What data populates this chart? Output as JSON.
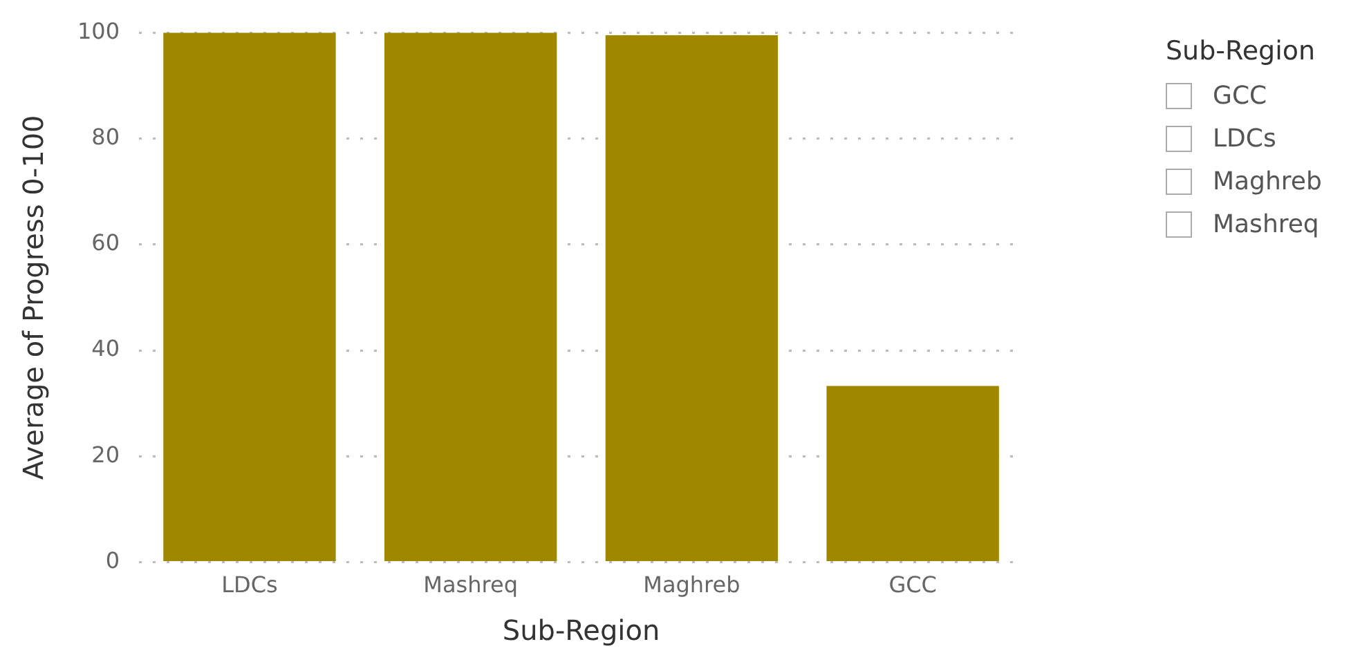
{
  "chart_data": {
    "type": "bar",
    "xlabel": "Sub-Region",
    "ylabel": "Average of Progress 0-100",
    "categories": [
      "LDCs",
      "Mashreq",
      "Maghreb",
      "GCC"
    ],
    "values": [
      100,
      100,
      99.5,
      33.3
    ],
    "color": "#a08700",
    "ylim": [
      0,
      100
    ],
    "yticks": [
      0,
      20,
      40,
      60,
      80,
      100
    ],
    "grid": "y",
    "legend_title": "Sub-Region",
    "annotations": [
      "GCC",
      "LDCs",
      "Maghreb",
      "Mashreq"
    ]
  }
}
